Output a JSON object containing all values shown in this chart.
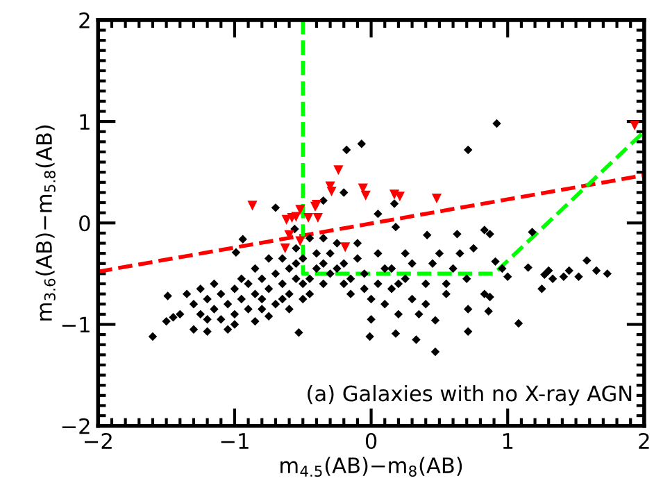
{
  "chart_data": {
    "type": "scatter",
    "xlabel": "m$_{4.5}$(AB)−m$_{8}$(AB)",
    "ylabel": "m$_{3.6}$(AB)−m$_{5.8}$(AB)",
    "xlim": [
      -2,
      2
    ],
    "ylim": [
      -2,
      2
    ],
    "xticks": [
      {
        "value": -2,
        "label": "−2"
      },
      {
        "value": -1,
        "label": "−1"
      },
      0,
      1,
      2
    ],
    "yticks": [
      {
        "value": -2,
        "label": "−2"
      },
      {
        "value": -1,
        "label": "−1"
      },
      0,
      1,
      2
    ],
    "grid": false,
    "legend": false,
    "annotations": [
      "(a) Galaxies with no X-ray AGN"
    ],
    "series": [
      {
        "color": "#000000",
        "marker": "diamond",
        "x": [
          -1.6,
          -1.5,
          -1.49,
          -0.53,
          -0.07,
          -0.18,
          0.92,
          0.71,
          -0.2,
          0.17,
          0.05,
          -0.35,
          -0.7,
          -0.56,
          -0.94,
          -0.99,
          0.18,
          0.41,
          0.63,
          0.83,
          0.87,
          1.18,
          1.3,
          1.27,
          1.33,
          1.25,
          1.15,
          1.45,
          1.41,
          1.52,
          1.58,
          1.65,
          1.73,
          1.0,
          1.08,
          0.47,
          0.33,
          0.18,
          -0.01,
          0.71,
          0.86,
          0.71,
          0.47,
          0.87,
          0.83,
          0.91,
          0.96,
          0.5,
          0.6,
          0.55,
          0.4,
          0.3,
          0.35,
          0.25,
          0.15,
          0.2,
          0.1,
          0.0,
          -0.05,
          0.05,
          -0.1,
          -0.15,
          -0.2,
          -0.3,
          -0.3,
          -0.35,
          -0.4,
          -0.45,
          -0.5,
          -0.55,
          -0.6,
          -0.6,
          -0.65,
          -0.7,
          -0.7,
          -0.75,
          -0.8,
          -0.8,
          -0.85,
          -0.9,
          -0.9,
          -0.95,
          -1.0,
          -1.0,
          -1.05,
          -1.1,
          -1.1,
          -1.15,
          -1.2,
          -1.2,
          -1.25,
          -1.25,
          -1.3,
          -1.35,
          -1.4,
          -1.45,
          -1.3,
          -1.2,
          -1.0,
          -0.85,
          -0.75,
          -0.6,
          -0.5,
          -0.45,
          -0.4,
          -0.35,
          -0.25,
          -0.25,
          -0.15,
          -0.1,
          -0.05,
          0.05,
          0.1,
          0.15,
          0.25,
          0.3,
          0.45,
          0.55,
          0.65,
          0.7,
          0.75,
          -0.65,
          -0.75,
          -0.85,
          -0.55,
          -0.45,
          -0.5,
          -0.65,
          -0.95,
          -1.15,
          -1.05,
          -0.8,
          -0.55,
          -0.35,
          -0.2,
          0.0,
          0.2,
          0.4
        ],
        "values": [
          -1.12,
          -0.97,
          -0.72,
          -1.08,
          0.78,
          0.72,
          0.98,
          0.72,
          0.3,
          0.19,
          0.09,
          0.22,
          0.15,
          -0.06,
          -0.16,
          -0.29,
          -0.04,
          -0.12,
          -0.11,
          -0.07,
          -0.11,
          -0.09,
          -0.47,
          -0.51,
          -0.55,
          -0.65,
          -0.44,
          -0.47,
          -0.53,
          -0.53,
          -0.37,
          -0.47,
          -0.5,
          -0.53,
          -0.99,
          -1.27,
          -1.15,
          -1.09,
          -1.12,
          -1.07,
          -0.87,
          -0.85,
          -0.96,
          -0.73,
          -0.7,
          -0.38,
          -0.45,
          -0.3,
          -0.45,
          -0.7,
          -0.6,
          -0.75,
          -0.9,
          -0.55,
          -0.45,
          -0.9,
          -0.8,
          -0.95,
          -0.5,
          -0.3,
          -0.2,
          -0.7,
          -0.4,
          -0.5,
          -0.3,
          -0.6,
          -0.45,
          -0.7,
          -0.35,
          -0.55,
          -0.45,
          -0.7,
          -0.6,
          -0.5,
          -0.8,
          -0.65,
          -0.55,
          -0.75,
          -0.7,
          -0.6,
          -0.85,
          -0.75,
          -0.65,
          -0.9,
          -0.8,
          -0.7,
          -0.95,
          -0.85,
          -0.75,
          -0.95,
          -0.9,
          -0.65,
          -0.8,
          -0.7,
          -0.9,
          -0.93,
          -1.05,
          -1.07,
          -1.0,
          -0.97,
          -0.92,
          -0.85,
          -0.75,
          -0.55,
          -0.3,
          -0.15,
          -0.2,
          -0.45,
          -0.55,
          -0.35,
          -0.65,
          -0.6,
          -0.45,
          -0.65,
          -0.3,
          -0.4,
          -0.4,
          -0.6,
          -0.3,
          -0.55,
          -0.25,
          -0.35,
          -0.35,
          -0.45,
          -0.25,
          -0.15,
          -0.6,
          -0.75,
          -0.55,
          -0.6,
          -1.05,
          -0.85,
          -0.4,
          -0.4,
          -0.6,
          -0.75,
          -0.6,
          -0.8
        ]
      },
      {
        "color": "#ff0000",
        "marker": "triangle",
        "x": [
          -0.87,
          -0.62,
          -0.58,
          -0.55,
          -0.52,
          -0.6,
          -0.52,
          -0.63,
          -0.46,
          -0.39,
          -0.41,
          -0.4,
          -0.3,
          -0.29,
          -0.24,
          -0.06,
          -0.04,
          0.17,
          0.21,
          0.48,
          -0.19,
          1.93
        ],
        "values": [
          0.17,
          0.03,
          0.05,
          0.06,
          0.13,
          -0.12,
          -0.18,
          -0.25,
          0.05,
          0.05,
          0.16,
          0.18,
          0.36,
          0.31,
          0.52,
          0.34,
          0.27,
          0.28,
          0.26,
          0.24,
          -0.24,
          0.96
        ]
      },
      {
        "type": "line",
        "color": "#ff0000",
        "line_style": "dashed",
        "x": [
          -2,
          2
        ],
        "values": [
          -0.48,
          0.47
        ]
      },
      {
        "type": "line",
        "color": "#00ff00",
        "line_style": "dashed",
        "x": [
          -0.5,
          -0.5,
          0.9,
          2
        ],
        "values": [
          2,
          -0.5,
          -0.5,
          0.9
        ]
      }
    ]
  }
}
